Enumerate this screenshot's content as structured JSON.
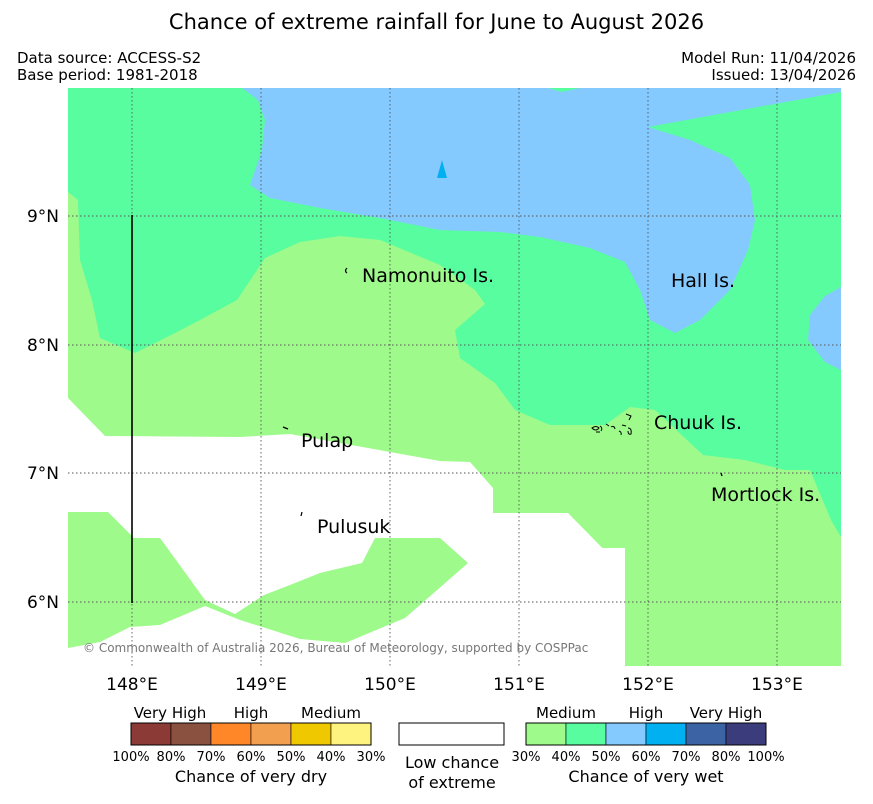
{
  "title": "Chance of extreme rainfall for June to August 2026",
  "meta": {
    "data_source": "Data source: ACCESS-S2",
    "base_period": "Base period: 1981-2018",
    "model_run": "Model Run: 11/04/2026",
    "issued": "Issued: 13/04/2026"
  },
  "axes": {
    "lon_labels": [
      "148°E",
      "149°E",
      "150°E",
      "151°E",
      "152°E",
      "153°E"
    ],
    "lat_labels": [
      "9°N",
      "8°N",
      "7°N",
      "6°N"
    ]
  },
  "places": {
    "namonuito": "Namonuito Is.",
    "hall": "Hall Is.",
    "pulap": "Pulap",
    "chuuk": "Chuuk Is.",
    "mortlock": "Mortlock Is.",
    "pulusuk": "Pulusuk"
  },
  "copyright": "© Commonwealth of Australia 2026, Bureau of Meteorology, supported by COSPPac",
  "legend": {
    "dry": {
      "headers": [
        "Very High",
        "High",
        "Medium"
      ],
      "ticks": [
        "100%",
        "80%",
        "70%",
        "60%",
        "50%",
        "40%",
        "30%"
      ],
      "caption": "Chance of very dry",
      "colors": [
        "#8b3a36",
        "#8a5040",
        "#ff8728",
        "#f2a050",
        "#f0c800",
        "#fff37f"
      ]
    },
    "neutral": {
      "caption_line1": "Low chance",
      "caption_line2": "of extreme",
      "color": "#ffffff"
    },
    "wet": {
      "headers": [
        "Medium",
        "High",
        "Very High"
      ],
      "ticks": [
        "30%",
        "40%",
        "50%",
        "60%",
        "70%",
        "80%",
        "100%"
      ],
      "caption": "Chance of very wet",
      "colors": [
        "#9efa8b",
        "#58fd9f",
        "#85caff",
        "#00b0f0",
        "#3c63a4",
        "#3b3c7c"
      ]
    }
  }
}
